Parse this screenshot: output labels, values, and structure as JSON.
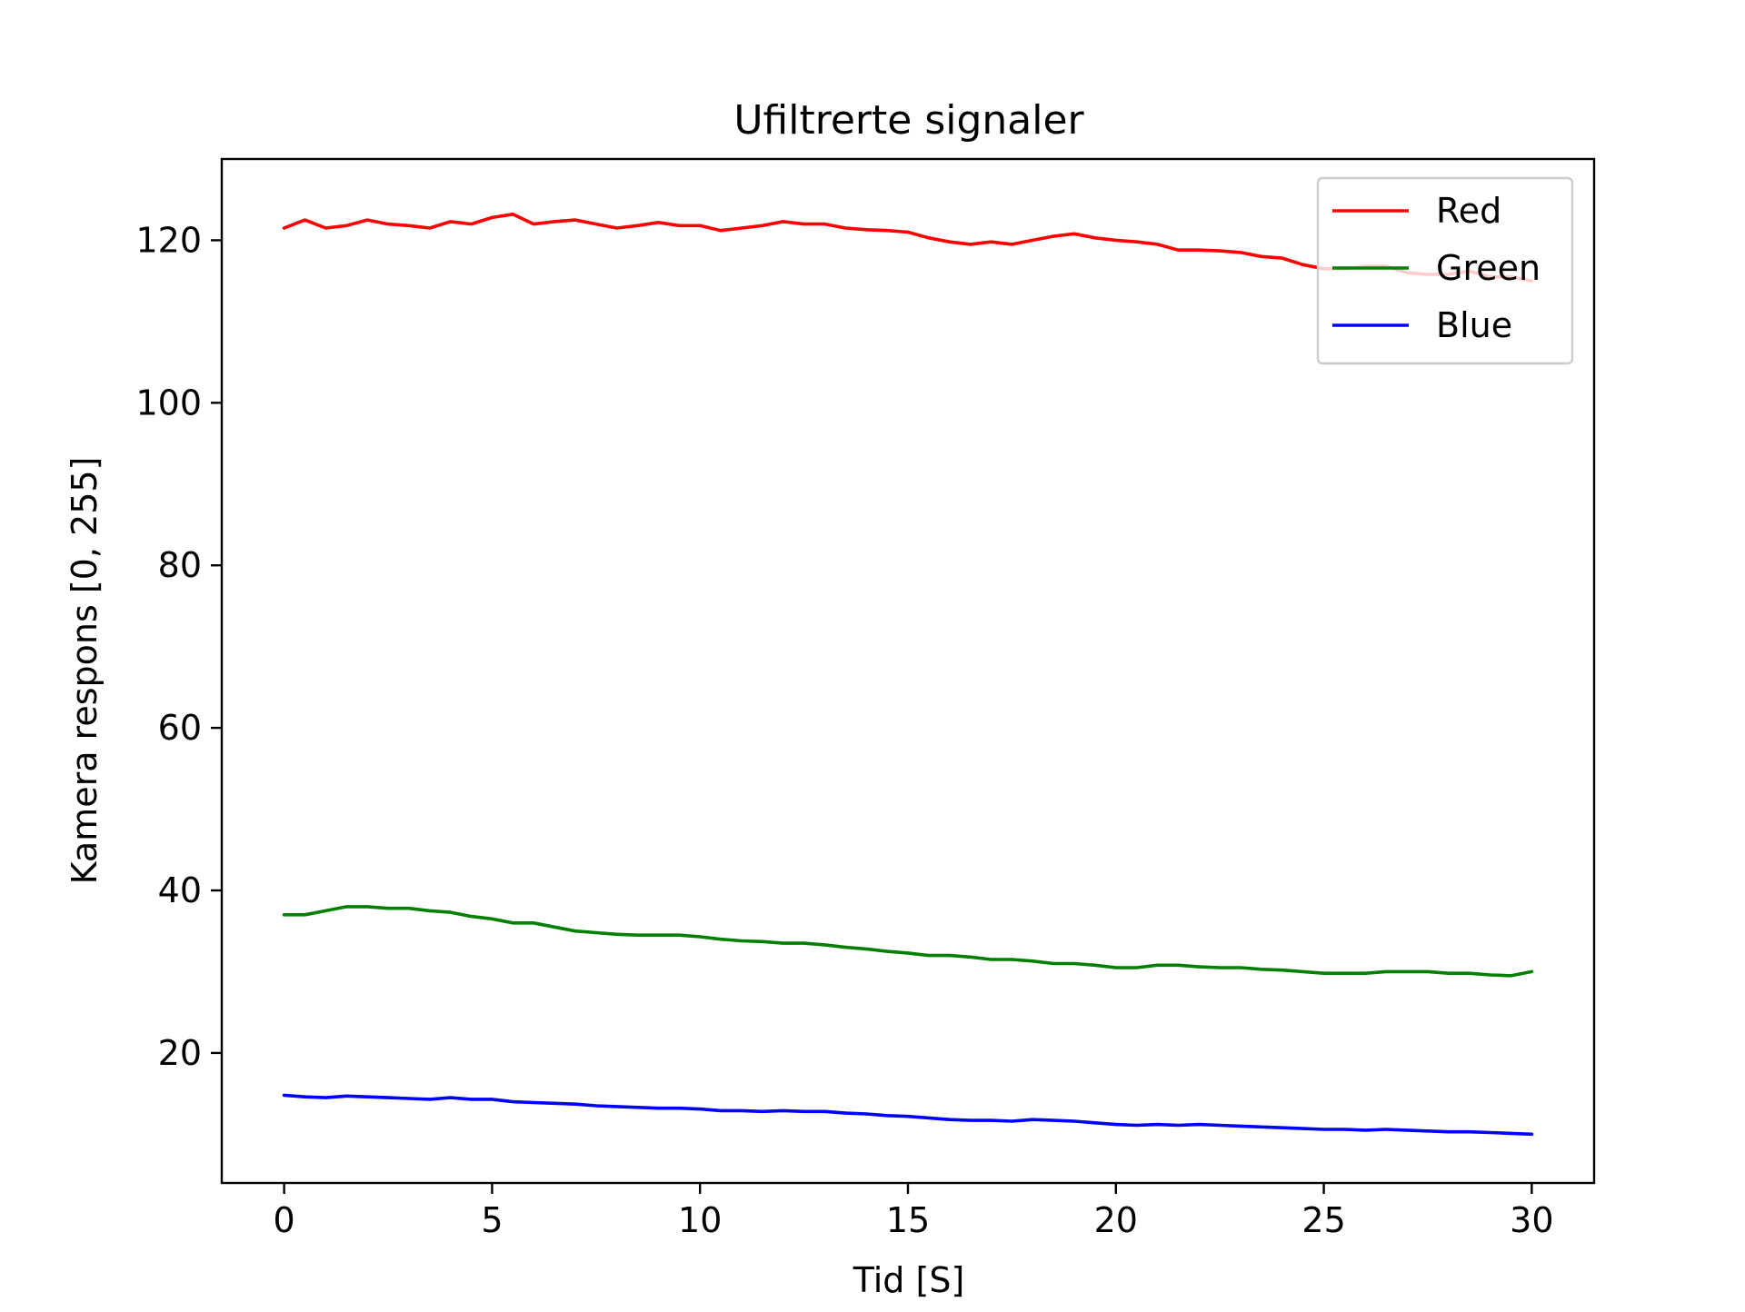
{
  "chart_data": {
    "type": "line",
    "title": "Ufiltrerte signaler",
    "xlabel": "Tid [S]",
    "ylabel": "Kamera respons [0, 255]",
    "xlim": [
      -1.5,
      31.5
    ],
    "ylim": [
      4,
      130
    ],
    "xticks": [
      0,
      5,
      10,
      15,
      20,
      25,
      30
    ],
    "yticks": [
      20,
      40,
      60,
      80,
      100,
      120
    ],
    "grid": false,
    "legend_position": "top-right",
    "series": [
      {
        "name": "Red",
        "color": "#ff0000",
        "x": [
          0,
          0.5,
          1,
          1.5,
          2,
          2.5,
          3,
          3.5,
          4,
          4.5,
          5,
          5.5,
          6,
          6.5,
          7,
          7.5,
          8,
          8.5,
          9,
          9.5,
          10,
          10.5,
          11,
          11.5,
          12,
          12.5,
          13,
          13.5,
          14,
          14.5,
          15,
          15.5,
          16,
          16.5,
          17,
          17.5,
          18,
          18.5,
          19,
          19.5,
          20,
          20.5,
          21,
          21.5,
          22,
          22.5,
          23,
          23.5,
          24,
          24.5,
          25,
          25.5,
          26,
          26.5,
          27,
          27.5,
          28,
          28.5,
          29,
          29.5,
          30
        ],
        "values": [
          121.5,
          122.5,
          121.5,
          121.8,
          122.5,
          122.0,
          121.8,
          121.5,
          122.3,
          122.0,
          122.8,
          123.2,
          122.0,
          122.3,
          122.5,
          122.0,
          121.5,
          121.8,
          122.2,
          121.8,
          121.8,
          121.2,
          121.5,
          121.8,
          122.3,
          122.0,
          122.0,
          121.5,
          121.3,
          121.2,
          121.0,
          120.3,
          119.8,
          119.5,
          119.8,
          119.5,
          120.0,
          120.5,
          120.8,
          120.3,
          120.0,
          119.8,
          119.5,
          118.8,
          118.8,
          118.7,
          118.5,
          118.0,
          117.8,
          117.0,
          116.5,
          116.5,
          116.8,
          116.8,
          116.0,
          115.8,
          115.8,
          116.2,
          115.5,
          115.5,
          115.0
        ]
      },
      {
        "name": "Green",
        "color": "#008000",
        "x": [
          0,
          0.5,
          1,
          1.5,
          2,
          2.5,
          3,
          3.5,
          4,
          4.5,
          5,
          5.5,
          6,
          6.5,
          7,
          7.5,
          8,
          8.5,
          9,
          9.5,
          10,
          10.5,
          11,
          11.5,
          12,
          12.5,
          13,
          13.5,
          14,
          14.5,
          15,
          15.5,
          16,
          16.5,
          17,
          17.5,
          18,
          18.5,
          19,
          19.5,
          20,
          20.5,
          21,
          21.5,
          22,
          22.5,
          23,
          23.5,
          24,
          24.5,
          25,
          25.5,
          26,
          26.5,
          27,
          27.5,
          28,
          28.5,
          29,
          29.5,
          30
        ],
        "values": [
          37.0,
          37.0,
          37.5,
          38.0,
          38.0,
          37.8,
          37.8,
          37.5,
          37.3,
          36.8,
          36.5,
          36.0,
          36.0,
          35.5,
          35.0,
          34.8,
          34.6,
          34.5,
          34.5,
          34.5,
          34.3,
          34.0,
          33.8,
          33.7,
          33.5,
          33.5,
          33.3,
          33.0,
          32.8,
          32.5,
          32.3,
          32.0,
          32.0,
          31.8,
          31.5,
          31.5,
          31.3,
          31.0,
          31.0,
          30.8,
          30.5,
          30.5,
          30.8,
          30.8,
          30.6,
          30.5,
          30.5,
          30.3,
          30.2,
          30.0,
          29.8,
          29.8,
          29.8,
          30.0,
          30.0,
          30.0,
          29.8,
          29.8,
          29.6,
          29.5,
          30.0
        ]
      },
      {
        "name": "Blue",
        "color": "#0000ff",
        "x": [
          0,
          0.5,
          1,
          1.5,
          2,
          2.5,
          3,
          3.5,
          4,
          4.5,
          5,
          5.5,
          6,
          6.5,
          7,
          7.5,
          8,
          8.5,
          9,
          9.5,
          10,
          10.5,
          11,
          11.5,
          12,
          12.5,
          13,
          13.5,
          14,
          14.5,
          15,
          15.5,
          16,
          16.5,
          17,
          17.5,
          18,
          18.5,
          19,
          19.5,
          20,
          20.5,
          21,
          21.5,
          22,
          22.5,
          23,
          23.5,
          24,
          24.5,
          25,
          25.5,
          26,
          26.5,
          27,
          27.5,
          28,
          28.5,
          29,
          29.5,
          30
        ],
        "values": [
          14.8,
          14.6,
          14.5,
          14.7,
          14.6,
          14.5,
          14.4,
          14.3,
          14.5,
          14.3,
          14.3,
          14.0,
          13.9,
          13.8,
          13.7,
          13.5,
          13.4,
          13.3,
          13.2,
          13.2,
          13.1,
          12.9,
          12.9,
          12.8,
          12.9,
          12.8,
          12.8,
          12.6,
          12.5,
          12.3,
          12.2,
          12.0,
          11.8,
          11.7,
          11.7,
          11.6,
          11.8,
          11.7,
          11.6,
          11.4,
          11.2,
          11.1,
          11.2,
          11.1,
          11.2,
          11.1,
          11.0,
          10.9,
          10.8,
          10.7,
          10.6,
          10.6,
          10.5,
          10.6,
          10.5,
          10.4,
          10.3,
          10.3,
          10.2,
          10.1,
          10.0
        ]
      }
    ]
  }
}
